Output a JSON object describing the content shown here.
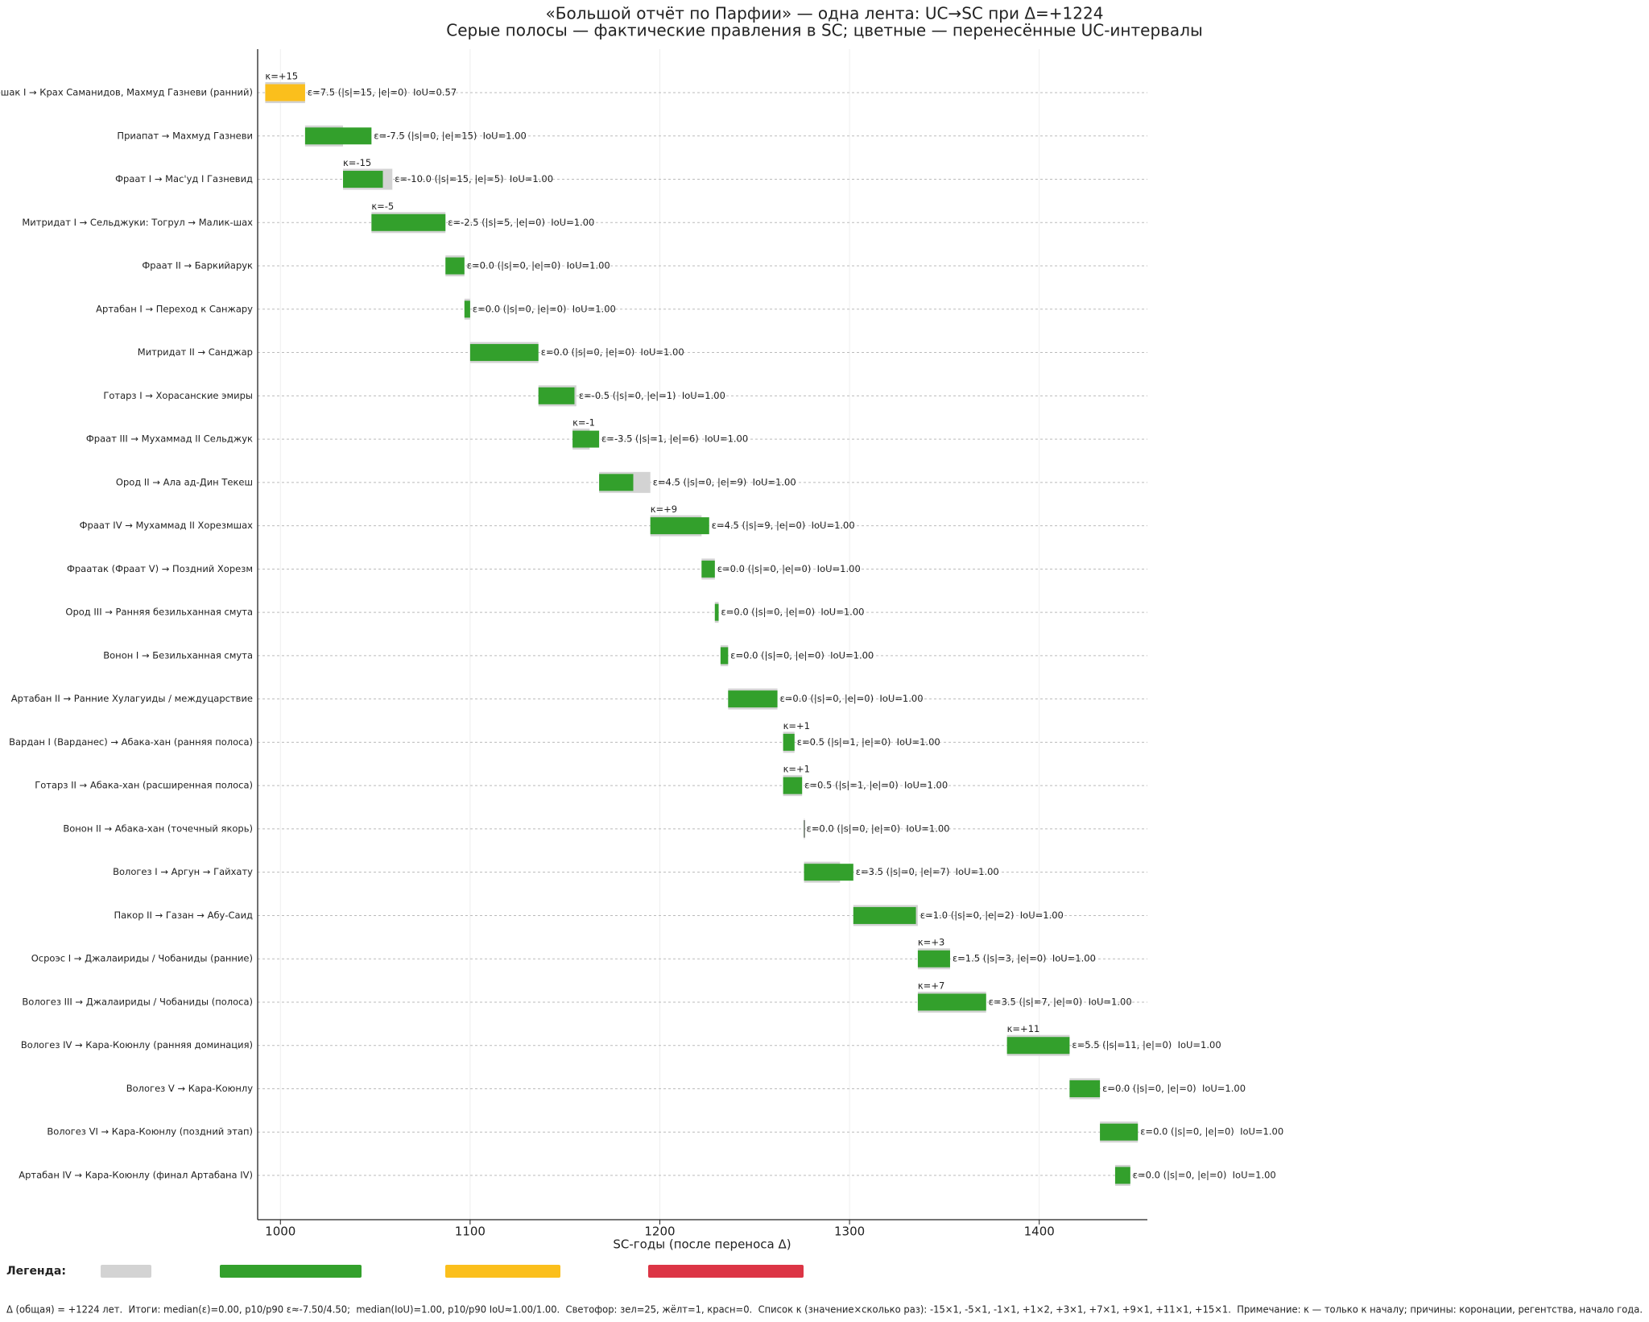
{
  "chart_data": {
    "type": "timeline",
    "title": "«Большой отчёт по Парфии» — одна лента: UC→SC при Δ=+1224",
    "subtitle": "Серые полосы — фактические правления в SC; цветные — перенесённые UC-интервалы",
    "xlabel": "SC-годы (после переноса Δ)",
    "xlim": [
      988,
      1457
    ],
    "xticks": [
      1000,
      1100,
      1200,
      1300,
      1400
    ],
    "grid": true,
    "actual_color": "#d3d3d3",
    "categories": [
      "Аршак I → Крах Саманидов, Махмуд Газневи (ранний)",
      "Приапат → Махмуд Газневи",
      "Фраат I → Мас'уд I Газневид",
      "Митридат I → Сельджуки: Тогрул → Малик-шах",
      "Фраат II → Баркийарук",
      "Артабан I → Переход к Санжару",
      "Митридат II → Санджар",
      "Готарз I → Хорасанские эмиры",
      "Фраат III → Мухаммад II Сельджук",
      "Ород II → Ала ад-Дин Текеш",
      "Фраат IV → Мухаммад II Хорезмшах",
      "Фраатак (Фраат V) → Поздний Хорезм",
      "Ород III → Ранняя безильханная смута",
      "Вонон I → Безильханная смута",
      "Артабан II → Ранние Хулагуиды / междуцарствие",
      "Вардан I (Варданес) → Абака-хан (ранняя полоса)",
      "Готарз II → Абака-хан (расширенная полоса)",
      "Вонон II → Абака-хан (точечный якорь)",
      "Вологез I → Аргун → Гайхату",
      "Пакор II → Газан → Абу-Саид",
      "Осроэс I → Джалаириды / Чобаниды (ранние)",
      "Вологез III → Джалаириды / Чобаниды (полоса)",
      "Вологез IV → Кара-Коюнлу (ранняя доминация)",
      "Вологез V → Кара-Коюнлу",
      "Вологез VI → Кара-Коюнлу (поздний этап)",
      "Артабан IV → Кара-Коюнлу (финал Артабана IV)"
    ],
    "actual": [
      [
        992,
        1013
      ],
      [
        1013,
        1033
      ],
      [
        1033,
        1059
      ],
      [
        1048,
        1087
      ],
      [
        1087,
        1097
      ],
      [
        1097,
        1100
      ],
      [
        1100,
        1136
      ],
      [
        1136,
        1156
      ],
      [
        1154,
        1163
      ],
      [
        1168,
        1195
      ],
      [
        1195,
        1222
      ],
      [
        1222,
        1229
      ],
      [
        1229,
        1231
      ],
      [
        1232,
        1236
      ],
      [
        1236,
        1262
      ],
      [
        1265,
        1271
      ],
      [
        1265,
        1275
      ],
      [
        1276,
        1276
      ],
      [
        1276,
        1295
      ],
      [
        1302,
        1336
      ],
      [
        1336,
        1353
      ],
      [
        1336,
        1372
      ],
      [
        1383,
        1416
      ],
      [
        1416,
        1432
      ],
      [
        1432,
        1452
      ],
      [
        1440,
        1448
      ]
    ],
    "transferred": [
      [
        992,
        1013
      ],
      [
        1013,
        1048
      ],
      [
        1033,
        1054
      ],
      [
        1048,
        1087
      ],
      [
        1087,
        1097
      ],
      [
        1097,
        1100
      ],
      [
        1100,
        1136
      ],
      [
        1136,
        1155
      ],
      [
        1154,
        1168
      ],
      [
        1168,
        1186
      ],
      [
        1195,
        1226
      ],
      [
        1222,
        1229
      ],
      [
        1229,
        1231
      ],
      [
        1232,
        1236
      ],
      [
        1236,
        1262
      ],
      [
        1265,
        1271
      ],
      [
        1265,
        1275
      ],
      [
        1276,
        1276
      ],
      [
        1276,
        1302
      ],
      [
        1302,
        1335
      ],
      [
        1336,
        1353
      ],
      [
        1336,
        1372
      ],
      [
        1383,
        1416
      ],
      [
        1416,
        1432
      ],
      [
        1432,
        1452
      ],
      [
        1440,
        1448
      ]
    ],
    "colors": [
      "#fbbf1c",
      "#33a02c",
      "#33a02c",
      "#33a02c",
      "#33a02c",
      "#33a02c",
      "#33a02c",
      "#33a02c",
      "#33a02c",
      "#33a02c",
      "#33a02c",
      "#33a02c",
      "#33a02c",
      "#33a02c",
      "#33a02c",
      "#33a02c",
      "#33a02c",
      "#33a02c",
      "#33a02c",
      "#33a02c",
      "#33a02c",
      "#33a02c",
      "#33a02c",
      "#33a02c",
      "#33a02c",
      "#33a02c"
    ],
    "kappa_labels": [
      "κ=+15",
      null,
      "κ=-15",
      "κ=-5",
      null,
      null,
      null,
      null,
      "κ=-1",
      null,
      "κ=+9",
      null,
      null,
      null,
      null,
      "κ=+1",
      "κ=+1",
      null,
      null,
      null,
      "κ=+3",
      "κ=+7",
      "κ=+11",
      null,
      null,
      null
    ],
    "epsilon_labels": [
      "ε=7.5 (|s|=15, |e|=0)  IoU=0.57",
      "ε=-7.5 (|s|=0, |e|=15)  IoU=1.00",
      "ε=-10.0 (|s|=15, |e|=5)  IoU=1.00",
      "ε=-2.5 (|s|=5, |e|=0)  IoU=1.00",
      "ε=0.0 (|s|=0, |e|=0)  IoU=1.00",
      "ε=0.0 (|s|=0, |e|=0)  IoU=1.00",
      "ε=0.0 (|s|=0, |e|=0)  IoU=1.00",
      "ε=-0.5 (|s|=0, |e|=1)  IoU=1.00",
      "ε=-3.5 (|s|=1, |e|=6)  IoU=1.00",
      "ε=4.5 (|s|=0, |e|=9)  IoU=1.00",
      "ε=4.5 (|s|=9, |e|=0)  IoU=1.00",
      "ε=0.0 (|s|=0, |e|=0)  IoU=1.00",
      "ε=0.0 (|s|=0, |e|=0)  IoU=1.00",
      "ε=0.0 (|s|=0, |e|=0)  IoU=1.00",
      "ε=0.0 (|s|=0, |e|=0)  IoU=1.00",
      "ε=0.5 (|s|=1, |e|=0)  IoU=1.00",
      "ε=0.5 (|s|=1, |e|=0)  IoU=1.00",
      "ε=0.0 (|s|=0, |e|=0)  IoU=1.00",
      "ε=3.5 (|s|=0, |e|=7)  IoU=1.00",
      "ε=1.0 (|s|=0, |e|=2)  IoU=1.00",
      "ε=1.5 (|s|=3, |e|=0)  IoU=1.00",
      "ε=3.5 (|s|=7, |e|=0)  IoU=1.00",
      "ε=5.5 (|s|=11, |e|=0)  IoU=1.00",
      "ε=0.0 (|s|=0, |e|=0)  IoU=1.00",
      "ε=0.0 (|s|=0, |e|=0)  IoU=1.00",
      "ε=0.0 (|s|=0, |e|=0)  IoU=1.00"
    ],
    "legend": {
      "title": "Легенда:",
      "colors": [
        "#d3d3d3",
        "#33a02c",
        "#fbbf1c",
        "#dc3545"
      ]
    },
    "footer": "Δ (общая) = +1224 лет.  Итоги: median(ε)=0.00, p10/p90 ε≈-7.50/4.50;  median(IoU)=1.00, p10/p90 IoU≈1.00/1.00.  Светофор: зел=25, жёлт=1, красн=0.  Список κ (значение×сколько раз): -15×1, -5×1, -1×1, +1×2, +3×1, +7×1, +9×1, +11×1, +15×1.  Примечание: κ — только к началу; причины: коронации, регентства, начало года."
  }
}
